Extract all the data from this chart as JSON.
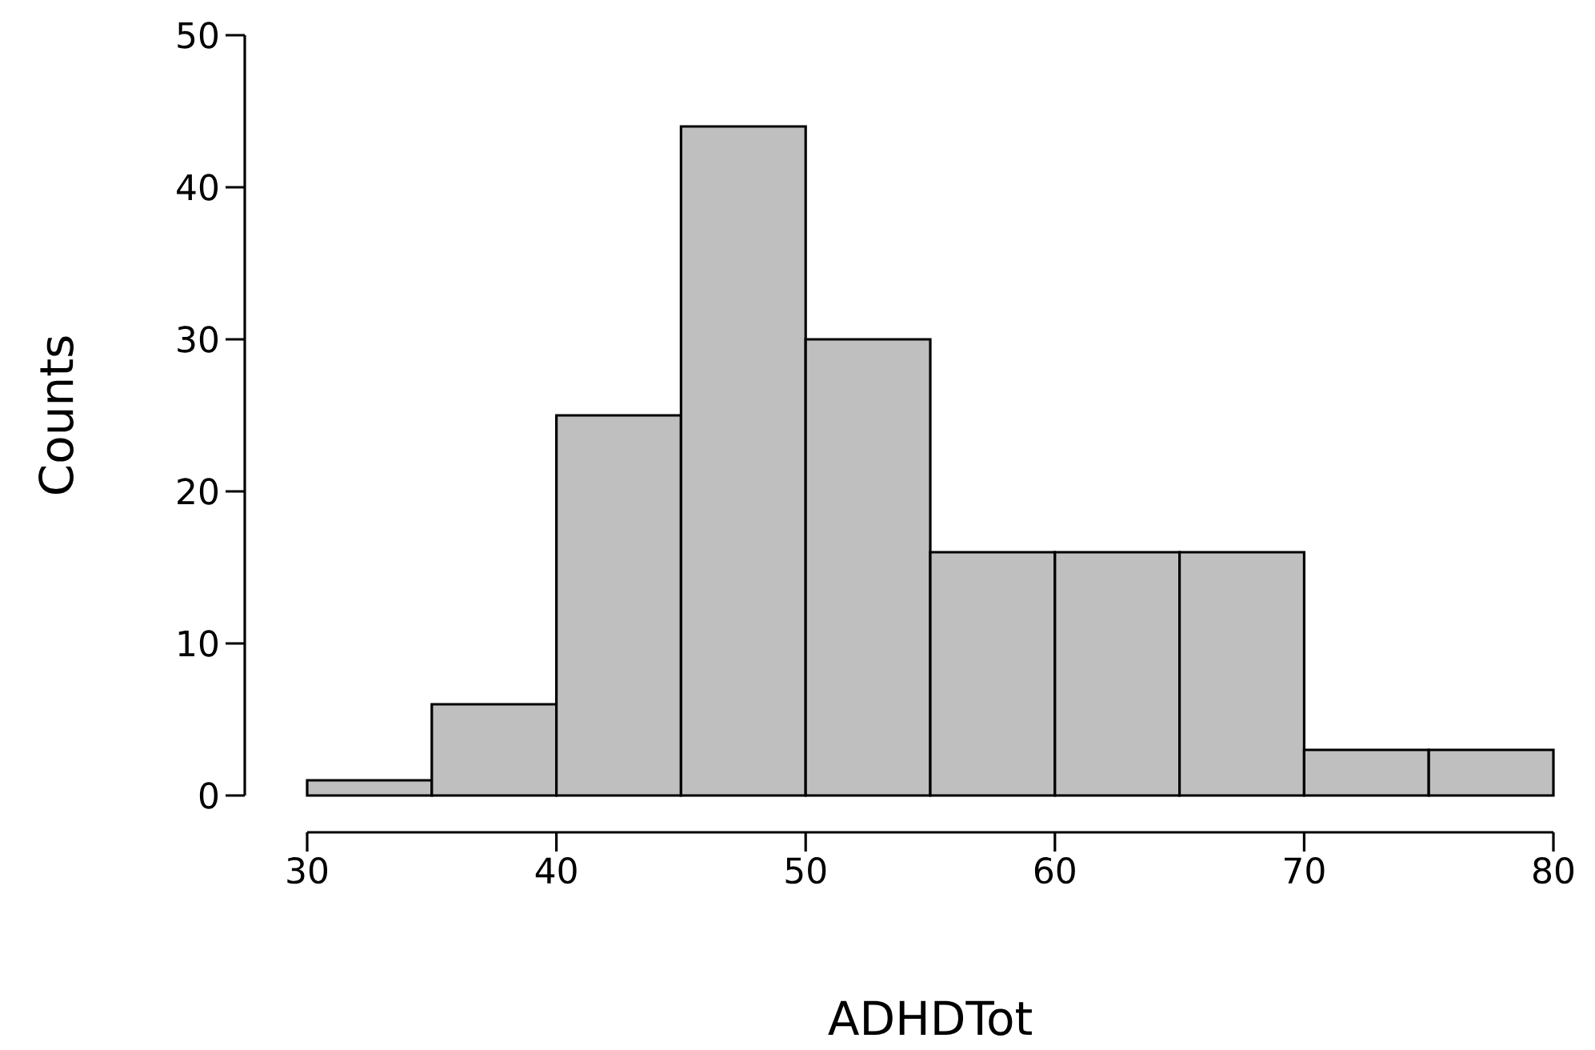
{
  "chart_data": {
    "type": "histogram",
    "xlabel": "ADHDTot",
    "ylabel": "Counts",
    "bins": [
      30,
      35,
      40,
      45,
      50,
      55,
      60,
      65,
      70,
      75,
      80
    ],
    "values": [
      1,
      6,
      25,
      44,
      30,
      16,
      16,
      16,
      3,
      3
    ],
    "color": "#bfbfbf",
    "xlim": [
      30,
      80
    ],
    "ylim": [
      0,
      50
    ],
    "xticks": [
      30,
      40,
      50,
      60,
      70,
      80
    ],
    "yticks": [
      0,
      10,
      20,
      30,
      40,
      50
    ]
  }
}
